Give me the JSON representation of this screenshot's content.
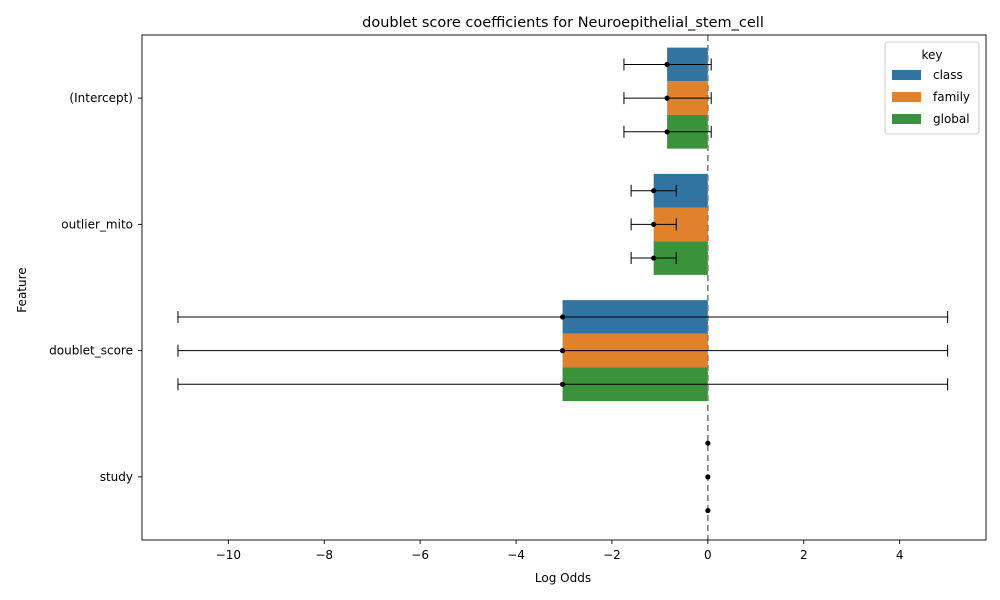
{
  "chart_data": {
    "type": "bar",
    "orientation": "horizontal",
    "title": "doublet score coefficients for Neuroepithelial_stem_cell",
    "xlabel": "Log Odds",
    "ylabel": "Feature",
    "categories": [
      "(Intercept)",
      "outlier_mito",
      "doublet_score",
      "study"
    ],
    "xlim": [
      -11.8,
      5.8
    ],
    "xticks": [
      -10,
      -8,
      -6,
      -4,
      -2,
      0,
      2,
      4
    ],
    "xtick_labels": [
      "−10",
      "−8",
      "−6",
      "−4",
      "−2",
      "0",
      "2",
      "4"
    ],
    "reference_line": 0,
    "legend": {
      "title": "key",
      "position": "top-right"
    },
    "series": [
      {
        "name": "class",
        "color": "#3274a1",
        "values": [
          -0.85,
          -1.13,
          -3.03,
          0.0
        ],
        "ci_low": [
          -1.75,
          -1.6,
          -11.05,
          0.0
        ],
        "ci_high": [
          0.07,
          -0.66,
          5.0,
          0.0
        ]
      },
      {
        "name": "family",
        "color": "#e1812c",
        "values": [
          -0.85,
          -1.13,
          -3.03,
          0.0
        ],
        "ci_low": [
          -1.75,
          -1.6,
          -11.05,
          0.0
        ],
        "ci_high": [
          0.07,
          -0.66,
          5.0,
          0.0
        ]
      },
      {
        "name": "global",
        "color": "#3a923a",
        "values": [
          -0.85,
          -1.13,
          -3.03,
          0.0
        ],
        "ci_low": [
          -1.75,
          -1.6,
          -11.05,
          0.0
        ],
        "ci_high": [
          0.07,
          -0.66,
          5.0,
          0.0
        ]
      }
    ]
  }
}
